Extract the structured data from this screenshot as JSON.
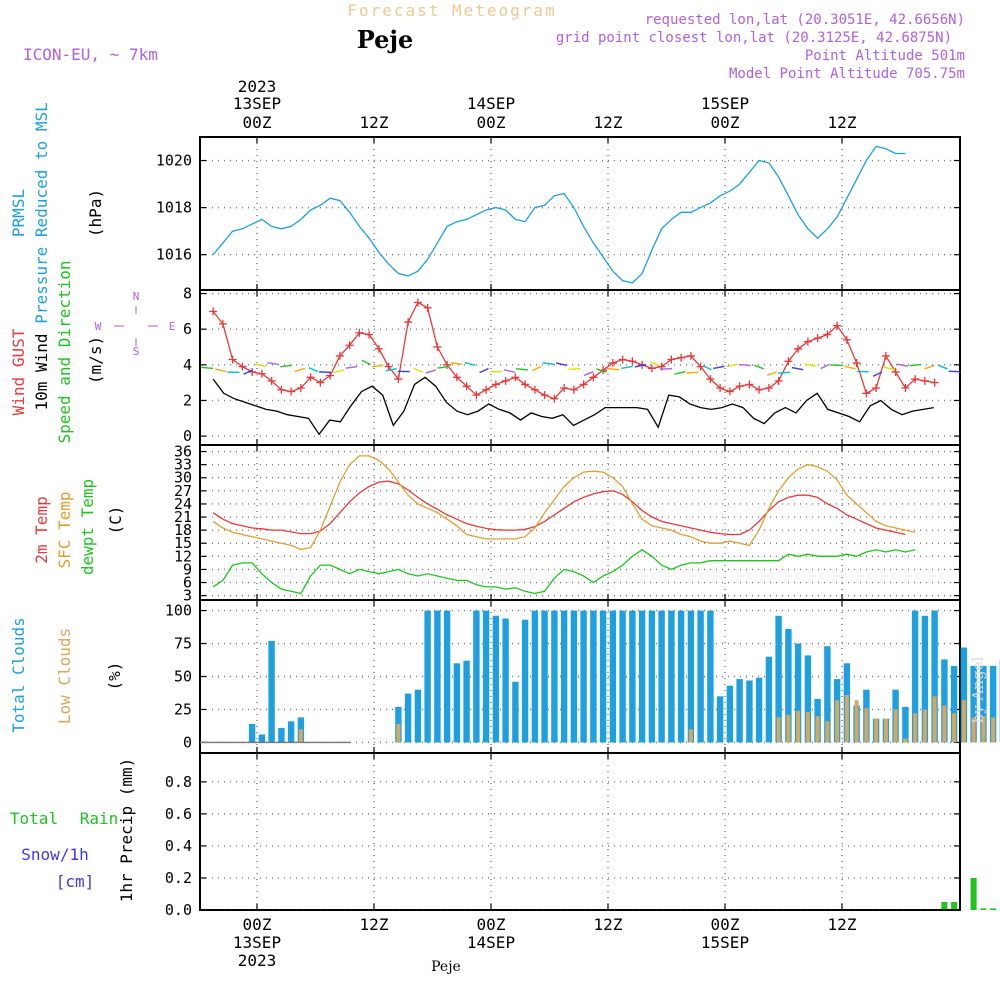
{
  "header": {
    "title": "Forecast Meteogram",
    "location": "Peje",
    "model": "ICON-EU, ~ 7km",
    "requested": "requested lon,lat (20.3051E, 42.6656N)",
    "gridpoint": "grid point closest lon,lat (20.3125E, 42.6875N)",
    "point_alt": "Point Altitude 501m",
    "model_alt": "Model Point Altitude 705.75m"
  },
  "top_axis": {
    "year": "2023",
    "labels": [
      {
        "hour": 0,
        "lines": [
          "13SEP",
          "00Z"
        ]
      },
      {
        "hour": 12,
        "lines": [
          "12Z"
        ]
      },
      {
        "hour": 24,
        "lines": [
          "14SEP",
          "00Z"
        ]
      },
      {
        "hour": 36,
        "lines": [
          "12Z"
        ]
      },
      {
        "hour": 48,
        "lines": [
          "15SEP",
          "00Z"
        ]
      },
      {
        "hour": 60,
        "lines": [
          "12Z"
        ]
      }
    ]
  },
  "bottom_axis": {
    "year": "2023",
    "labels": [
      {
        "hour": 0,
        "lines": [
          "00Z",
          "13SEP",
          "2023"
        ]
      },
      {
        "hour": 12,
        "lines": [
          "12Z"
        ]
      },
      {
        "hour": 24,
        "lines": [
          "00Z",
          "14SEP"
        ]
      },
      {
        "hour": 36,
        "lines": [
          "12Z"
        ]
      },
      {
        "hour": 48,
        "lines": [
          "00Z",
          "15SEP"
        ]
      },
      {
        "hour": 60,
        "lines": [
          "12Z"
        ]
      }
    ],
    "footer": "Peje"
  },
  "watermark": "by Angel",
  "colors": {
    "pressure": "#1e9fe0",
    "gust": "#e83a3a",
    "wind": "#000000",
    "t2m": "#e83a3a",
    "sfc": "#e0a030",
    "dewpt": "#1fc41f",
    "total_clouds": "#1e9fe0",
    "low_clouds": "#d4a860",
    "rain": "#1fc41f",
    "snow": "#3a3ae8",
    "label_purple": "#b060e0",
    "title_orange": "#f0c890"
  },
  "panels": {
    "pressure": {
      "labels": [
        "PRMSL",
        "Pressure Reduced to MSL"
      ],
      "unit": "(hPa)"
    },
    "wind": {
      "labels": [
        "Wind GUST",
        "10m Wind",
        "Speed and Direction"
      ],
      "unit": "(m/s)",
      "compass": {
        "n": "N",
        "w": "W",
        "e": "E",
        "s": "S"
      }
    },
    "temp": {
      "labels": [
        "2m Temp",
        "SFC Temp",
        "dewpt Temp"
      ],
      "unit": "(C)"
    },
    "clouds": {
      "labels": [
        "Total Clouds",
        "Low Clouds"
      ],
      "unit": "(%)"
    },
    "precip": {
      "labels": [
        "Total",
        "Rain",
        "Snow/1h",
        "[cm]"
      ],
      "unit": "1hr Precip (mm)"
    }
  },
  "chart_data": [
    {
      "type": "line",
      "title": "PRMSL Pressure Reduced to MSL",
      "ylabel": "(hPa)",
      "x_start_hour": -4.5,
      "x_step": 1,
      "ylim": [
        1014.5,
        1021.0
      ],
      "yticks": [
        1016,
        1018,
        1020
      ],
      "series": [
        {
          "name": "PRMSL",
          "values": [
            1016.0,
            1016.5,
            1017.0,
            1017.1,
            1017.3,
            1017.5,
            1017.2,
            1017.1,
            1017.2,
            1017.5,
            1017.9,
            1018.1,
            1018.4,
            1018.3,
            1017.8,
            1017.2,
            1016.7,
            1016.1,
            1015.6,
            1015.2,
            1015.1,
            1015.3,
            1015.8,
            1016.5,
            1017.2,
            1017.4,
            1017.5,
            1017.7,
            1017.9,
            1018.0,
            1017.9,
            1017.5,
            1017.4,
            1018.0,
            1018.1,
            1018.5,
            1018.6,
            1018.0,
            1017.2,
            1016.5,
            1015.9,
            1015.3,
            1014.9,
            1014.8,
            1015.2,
            1016.2,
            1017.1,
            1017.5,
            1017.8,
            1017.8,
            1018.0,
            1018.2,
            1018.5,
            1018.7,
            1019.0,
            1019.5,
            1020.0,
            1019.9,
            1019.3,
            1018.5,
            1017.7,
            1017.1,
            1016.7,
            1017.1,
            1017.6,
            1018.4,
            1019.2,
            1020.0,
            1020.6,
            1020.5,
            1020.3,
            1020.3
          ]
        }
      ]
    },
    {
      "type": "line",
      "title": "Wind GUST / 10m Wind Speed and Direction",
      "ylabel": "(m/s)",
      "x_start_hour": -4.5,
      "x_step": 1,
      "ylim": [
        -0.5,
        8.2
      ],
      "yticks": [
        0,
        2,
        4,
        6,
        8
      ],
      "series": [
        {
          "name": "Wind GUST",
          "values": [
            7.0,
            6.3,
            4.3,
            3.9,
            3.6,
            3.5,
            3.1,
            2.6,
            2.5,
            2.7,
            3.3,
            3.0,
            3.4,
            4.5,
            5.1,
            5.8,
            5.7,
            4.9,
            3.9,
            3.2,
            6.4,
            7.5,
            7.2,
            5.0,
            4.0,
            3.3,
            2.8,
            2.3,
            2.6,
            2.9,
            3.1,
            3.3,
            2.9,
            2.6,
            2.3,
            2.1,
            2.7,
            2.6,
            2.9,
            3.3,
            3.7,
            4.1,
            4.3,
            4.2,
            4.0,
            3.8,
            3.9,
            4.3,
            4.4,
            4.5,
            3.9,
            3.2,
            2.7,
            2.5,
            2.8,
            2.9,
            2.6,
            2.7,
            3.1,
            4.2,
            4.9,
            5.3,
            5.5,
            5.7,
            6.2,
            5.4,
            4.1,
            2.4,
            2.7,
            4.5,
            3.6,
            2.7,
            3.2,
            3.1,
            3.0
          ]
        },
        {
          "name": "10m Wind",
          "values": [
            3.2,
            2.4,
            2.1,
            1.9,
            1.7,
            1.5,
            1.4,
            1.2,
            1.1,
            1.0,
            0.1,
            0.9,
            0.8,
            1.7,
            2.5,
            2.8,
            2.3,
            0.6,
            1.4,
            2.9,
            3.3,
            2.8,
            1.9,
            1.4,
            1.2,
            1.4,
            1.8,
            1.5,
            1.3,
            0.9,
            1.3,
            1.1,
            1.0,
            1.2,
            0.6,
            0.9,
            1.2,
            1.6,
            1.6,
            1.6,
            1.6,
            1.5,
            0.5,
            2.3,
            2.2,
            1.8,
            1.6,
            1.5,
            1.6,
            1.8,
            1.6,
            1.0,
            0.7,
            1.3,
            1.6,
            1.3,
            2.0,
            2.4,
            1.5,
            1.3,
            1.1,
            0.8,
            1.7,
            2.0,
            1.5,
            1.2,
            1.4,
            1.5,
            1.6
          ]
        }
      ]
    },
    {
      "type": "line",
      "title": "2m Temp / SFC Temp / dewpt Temp",
      "ylabel": "(C)",
      "x_start_hour": -4.5,
      "x_step": 1,
      "ylim": [
        2.0,
        37.5
      ],
      "yticks": [
        3,
        6,
        9,
        12,
        15,
        18,
        21,
        24,
        27,
        30,
        33,
        36
      ],
      "series": [
        {
          "name": "2m Temp",
          "values": [
            22,
            20.5,
            19.5,
            19,
            18.5,
            18.3,
            18,
            18,
            17.6,
            17.2,
            17.2,
            17.8,
            19.5,
            22,
            24.5,
            26.5,
            28,
            29,
            29.2,
            28.6,
            27.2,
            25.5,
            24,
            22.8,
            21.5,
            20.5,
            19.5,
            18.9,
            18.4,
            18.1,
            18,
            18,
            18.2,
            18.8,
            20,
            21.5,
            23,
            24.5,
            25.5,
            26.3,
            26.8,
            27,
            26.2,
            24.5,
            22.5,
            21,
            20,
            19.5,
            19,
            18.5,
            18,
            17.5,
            17.2,
            17,
            17,
            18,
            20,
            22.5,
            24.5,
            25.5,
            26,
            26,
            25.5,
            24,
            23,
            21.5,
            20.5,
            19.5,
            18.5,
            18,
            17.5,
            17
          ]
        },
        {
          "name": "SFC Temp",
          "values": [
            20,
            18.5,
            17.5,
            17,
            16.5,
            16,
            15.5,
            15,
            14.5,
            13.6,
            14,
            18,
            23.5,
            29,
            33,
            35,
            35,
            34,
            32,
            29,
            26,
            24,
            23,
            22,
            20.5,
            19,
            17,
            16.5,
            16,
            16,
            16,
            16,
            16.5,
            18.5,
            22,
            25,
            28,
            30,
            31.3,
            31.5,
            31.3,
            30,
            28,
            24,
            20.5,
            19,
            18.5,
            18,
            17,
            16.5,
            15.5,
            15,
            15,
            15.5,
            15,
            14.5,
            18,
            23,
            27,
            30,
            32,
            33,
            32.5,
            31.5,
            29.5,
            26,
            24,
            22,
            20,
            19,
            18.5,
            18,
            17.5
          ]
        },
        {
          "name": "dewpt Temp",
          "values": [
            5,
            6.5,
            10,
            10.5,
            10.5,
            8,
            6,
            4.5,
            4,
            3.5,
            7.5,
            10,
            10,
            9,
            8,
            9,
            8.5,
            8,
            8.5,
            9,
            8,
            7.5,
            8,
            7.5,
            7,
            6.5,
            6.5,
            5.5,
            5,
            5,
            4.5,
            4.8,
            4,
            3.5,
            4,
            7,
            9,
            8.5,
            7.5,
            6,
            7.5,
            8.5,
            10,
            12,
            13.5,
            12,
            10,
            9,
            10,
            10.5,
            10.5,
            11,
            11,
            11,
            11,
            11,
            11,
            11,
            11,
            12.5,
            12,
            12.5,
            12,
            12,
            12,
            12.5,
            12,
            13,
            13.5,
            13,
            13.5,
            13,
            13.5
          ]
        }
      ]
    },
    {
      "type": "bar",
      "title": "Total Clouds / Low Clouds",
      "ylabel": "(%)",
      "x_start_hour": -4.5,
      "x_step": 1,
      "ylim": [
        -8,
        108
      ],
      "yticks": [
        0,
        25,
        50,
        75,
        100
      ],
      "series": [
        {
          "name": "Total Clouds",
          "values": [
            0,
            0,
            0,
            0,
            14,
            6,
            77,
            11,
            16,
            19,
            0,
            0,
            0,
            0,
            0,
            0,
            0,
            0,
            0,
            27,
            37,
            40,
            100,
            100,
            100,
            60,
            62,
            100,
            100,
            96,
            94,
            46,
            93,
            100,
            100,
            100,
            100,
            100,
            100,
            100,
            100,
            100,
            100,
            100,
            100,
            100,
            100,
            100,
            100,
            100,
            100,
            100,
            35,
            43,
            48,
            47,
            49,
            65,
            96,
            86,
            75,
            66,
            33,
            73,
            48,
            60,
            28,
            40,
            18,
            18,
            40,
            27,
            100,
            96,
            100,
            63,
            58,
            72,
            58,
            58,
            58,
            62,
            85,
            52,
            53,
            38
          ]
        },
        {
          "name": "Low Clouds",
          "values": [
            0,
            0,
            0,
            0,
            0,
            0,
            0,
            0,
            0,
            10,
            0,
            0,
            0,
            0,
            0,
            0,
            0,
            0,
            0,
            14,
            0,
            0,
            0,
            0,
            0,
            0,
            0,
            0,
            0,
            0,
            0,
            0,
            0,
            0,
            0,
            0,
            0,
            0,
            0,
            0,
            0,
            0,
            0,
            0,
            0,
            0,
            0,
            0,
            0,
            10,
            0,
            0,
            0,
            0,
            0,
            0,
            0,
            0,
            19,
            21,
            24,
            23,
            20,
            16,
            32,
            36,
            32,
            26,
            18,
            18,
            25,
            3,
            22,
            25,
            35,
            28,
            22,
            32,
            19,
            20,
            19,
            20,
            57,
            40,
            43,
            38
          ]
        }
      ]
    },
    {
      "type": "bar",
      "title": "1hr Precip",
      "ylabel": "1hr Precip (mm)",
      "x_start_hour": -4.5,
      "x_step": 1,
      "ylim": [
        0.0,
        0.98
      ],
      "yticks": [
        0.0,
        0.2,
        0.4,
        0.6,
        0.8
      ],
      "series": [
        {
          "name": "Total Rain",
          "values": [
            0,
            0,
            0,
            0,
            0,
            0,
            0,
            0,
            0,
            0,
            0,
            0,
            0,
            0,
            0,
            0,
            0,
            0,
            0,
            0,
            0,
            0,
            0,
            0,
            0,
            0,
            0,
            0,
            0,
            0,
            0,
            0,
            0,
            0,
            0,
            0,
            0,
            0,
            0,
            0,
            0,
            0,
            0,
            0,
            0,
            0,
            0,
            0,
            0,
            0,
            0,
            0,
            0,
            0,
            0,
            0,
            0,
            0,
            0,
            0,
            0,
            0,
            0,
            0,
            0,
            0,
            0,
            0,
            0,
            0,
            0,
            0,
            0,
            0,
            0,
            0.05,
            0.05,
            0,
            0.2,
            0.01,
            0.01,
            0,
            0.04,
            0.12,
            0.02,
            0
          ]
        },
        {
          "name": "Snow/1h",
          "values": []
        }
      ]
    }
  ]
}
